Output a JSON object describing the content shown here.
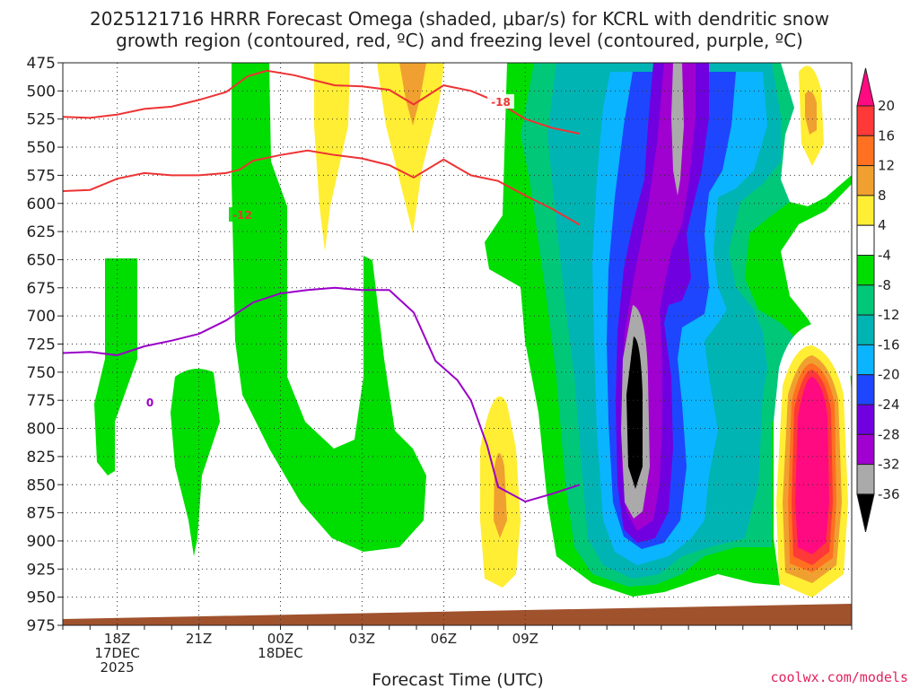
{
  "chart_data": {
    "type": "heatmap",
    "title_line1": "2025121716 HRRR Forecast Omega (shaded, μbar/s) for KCRL with dendritic snow",
    "title_line2": "growth region (contoured, red, ºC) and freezing level (contoured, purple, ºC)",
    "xlabel": "Forecast Time (UTC)",
    "credit": "coolwx.com/models",
    "y_axis": {
      "scale": "pressure (reversed)",
      "range": [
        975,
        475
      ],
      "ticks": [
        475,
        500,
        525,
        550,
        575,
        600,
        625,
        650,
        675,
        700,
        725,
        750,
        775,
        800,
        825,
        850,
        875,
        900,
        925,
        950,
        975
      ]
    },
    "x_axis": {
      "range_hours": [
        16,
        45
      ],
      "ticks": [
        {
          "hour": 18,
          "lines": [
            "18Z",
            "17DEC",
            "2025"
          ]
        },
        {
          "hour": 21,
          "lines": [
            "21Z"
          ]
        },
        {
          "hour": 24,
          "lines": [
            "00Z",
            "18DEC"
          ]
        },
        {
          "hour": 27,
          "lines": [
            "03Z"
          ]
        },
        {
          "hour": 30,
          "lines": [
            "06Z"
          ]
        },
        {
          "hour": 33,
          "lines": [
            "09Z"
          ]
        }
      ]
    },
    "grid": true,
    "colorbar": {
      "placement": "right",
      "labels": [
        "20",
        "16",
        "12",
        "8",
        "4",
        "-4",
        "-8",
        "-12",
        "-16",
        "-20",
        "-24",
        "-28",
        "-32",
        "-36"
      ],
      "colors": [
        "#ff0a80",
        "#ff3838",
        "#ff7020",
        "#f0a030",
        "#ffee33",
        "#ffffff",
        "#00dd00",
        "#00c878",
        "#00b4b4",
        "#0ab4ff",
        "#1e46ff",
        "#7000e0",
        "#a000d0",
        "#aaaaaa",
        "#000000"
      ]
    },
    "series": [
      {
        "name": "-18",
        "color": "#ee3333",
        "points": [
          [
            16,
            523
          ],
          [
            17,
            524
          ],
          [
            18,
            521
          ],
          [
            19,
            516
          ],
          [
            20,
            514
          ],
          [
            21,
            508
          ],
          [
            22,
            501
          ],
          [
            22.8,
            487
          ],
          [
            23.5,
            482
          ],
          [
            24.5,
            486
          ],
          [
            25,
            489
          ],
          [
            26,
            495
          ],
          [
            27,
            496
          ],
          [
            28,
            499
          ],
          [
            28.9,
            512
          ],
          [
            30,
            495
          ],
          [
            31,
            500
          ],
          [
            32,
            510
          ],
          [
            33,
            525
          ],
          [
            34,
            533
          ],
          [
            35,
            538
          ]
        ]
      },
      {
        "name": "-12",
        "color": "#ee3333",
        "points": [
          [
            16,
            589
          ],
          [
            17,
            588
          ],
          [
            18,
            578
          ],
          [
            19,
            573
          ],
          [
            20,
            575
          ],
          [
            21,
            575
          ],
          [
            22,
            573
          ],
          [
            22.5,
            570
          ],
          [
            23,
            562
          ],
          [
            24,
            557
          ],
          [
            25,
            553
          ],
          [
            26,
            557
          ],
          [
            27,
            560
          ],
          [
            28,
            566
          ],
          [
            28.9,
            577
          ],
          [
            30,
            561
          ],
          [
            31,
            575
          ],
          [
            32,
            580
          ],
          [
            33,
            593
          ],
          [
            34,
            605
          ],
          [
            35,
            619
          ]
        ]
      },
      {
        "name": "0",
        "color": "#9a00c8",
        "points": [
          [
            16,
            733
          ],
          [
            17,
            732
          ],
          [
            18,
            735
          ],
          [
            19,
            727
          ],
          [
            20,
            722
          ],
          [
            21,
            716
          ],
          [
            22,
            704
          ],
          [
            23,
            688
          ],
          [
            24,
            680
          ],
          [
            25,
            677
          ],
          [
            26,
            675
          ],
          [
            27,
            677
          ],
          [
            28,
            677
          ],
          [
            28.9,
            697
          ],
          [
            29.7,
            740
          ],
          [
            30.5,
            757
          ],
          [
            31,
            775
          ],
          [
            31.6,
            815
          ],
          [
            32,
            852
          ],
          [
            33,
            865
          ],
          [
            34,
            858
          ],
          [
            35,
            850
          ]
        ]
      }
    ]
  }
}
